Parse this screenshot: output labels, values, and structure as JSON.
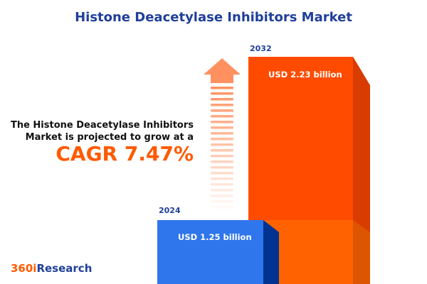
{
  "title": "Histone Deacetylase Inhibitors Market",
  "description_line1": "The Histone Deacetylase Inhibitors",
  "description_line2": "Market is projected to grow at a",
  "cagr": "CAGR 7.47%",
  "bars": [
    {
      "year": "2024",
      "value": "USD 1.25 billion",
      "color": "#2f76ec"
    },
    {
      "year": "2032",
      "value": "USD 2.23 billion",
      "color": "#ff4b00"
    }
  ],
  "logo": {
    "part1": "360i",
    "part2": "Research",
    "color1": "#ff5a00",
    "color2": "#1f3f9a"
  },
  "arrow_icon": "up-arrow-icon"
}
